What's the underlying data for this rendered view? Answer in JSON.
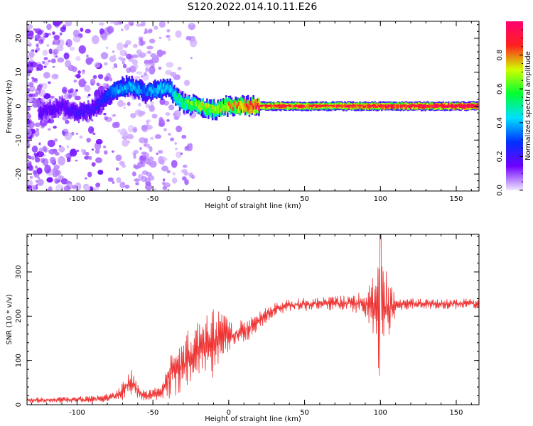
{
  "title": "S120.2022.014.10.11.E26",
  "chart_data": [
    {
      "type": "heatmap",
      "xlabel": "Height of straight line (km)",
      "ylabel": "Frequency (Hz)",
      "xlim": [
        -133,
        165
      ],
      "ylim": [
        -25,
        25
      ],
      "x_ticks": [
        -100,
        -50,
        0,
        50,
        100,
        150
      ],
      "y_ticks": [
        -20,
        -10,
        0,
        10,
        20
      ],
      "colorbar": {
        "label": "Normalized spectral amplitude",
        "range": [
          0,
          1
        ],
        "ticks": [
          0.0,
          0.2,
          0.4,
          0.6,
          0.8
        ],
        "colors": [
          "#f0e8ff",
          "#7000ff",
          "#0030ff",
          "#00e0ff",
          "#00ff30",
          "#d0ff00",
          "#ff2020",
          "#ff0070"
        ]
      },
      "ridge": {
        "x": [
          -125,
          -110,
          -100,
          -90,
          -80,
          -75,
          -65,
          -55,
          -45,
          -40,
          -35,
          -30,
          -20,
          -10,
          0,
          10,
          20,
          40,
          60,
          80,
          100,
          120,
          140,
          164
        ],
        "freq": [
          -2,
          0,
          -2,
          -1,
          3,
          5,
          6,
          4,
          5,
          6,
          3,
          1,
          0,
          -1,
          0,
          0,
          0,
          0,
          0,
          0,
          0,
          0,
          0,
          0
        ],
        "amplitude": [
          0.15,
          0.15,
          0.18,
          0.18,
          0.25,
          0.35,
          0.35,
          0.3,
          0.4,
          0.35,
          0.45,
          0.5,
          0.6,
          0.6,
          0.65,
          0.75,
          0.8,
          0.78,
          0.75,
          0.78,
          0.8,
          0.82,
          0.85,
          0.88
        ]
      },
      "grid": false
    },
    {
      "type": "line",
      "xlabel": "Height of straight line (km)",
      "ylabel": "SNR (10 * v/v)",
      "xlim": [
        -133,
        165
      ],
      "ylim": [
        0,
        385
      ],
      "x_ticks": [
        -100,
        -50,
        0,
        50,
        100,
        150
      ],
      "y_ticks": [
        0,
        100,
        200,
        300
      ],
      "color": "#ee3333",
      "envelope": {
        "x": [
          -133,
          -90,
          -75,
          -70,
          -65,
          -60,
          -55,
          -45,
          -40,
          -35,
          -30,
          -25,
          -20,
          -15,
          -10,
          -5,
          0,
          10,
          20,
          30,
          40,
          60,
          80,
          90,
          95,
          100,
          105,
          108,
          112,
          130,
          165
        ],
        "mean": [
          10,
          12,
          18,
          30,
          55,
          30,
          20,
          25,
          60,
          80,
          90,
          110,
          120,
          130,
          140,
          150,
          155,
          165,
          190,
          215,
          225,
          228,
          230,
          230,
          220,
          210,
          220,
          225,
          228,
          228,
          228
        ],
        "swing": [
          6,
          8,
          10,
          20,
          35,
          20,
          10,
          20,
          50,
          60,
          60,
          70,
          70,
          70,
          80,
          60,
          40,
          30,
          20,
          15,
          15,
          15,
          20,
          30,
          70,
          160,
          90,
          40,
          15,
          12,
          12
        ]
      },
      "grid": false
    }
  ]
}
